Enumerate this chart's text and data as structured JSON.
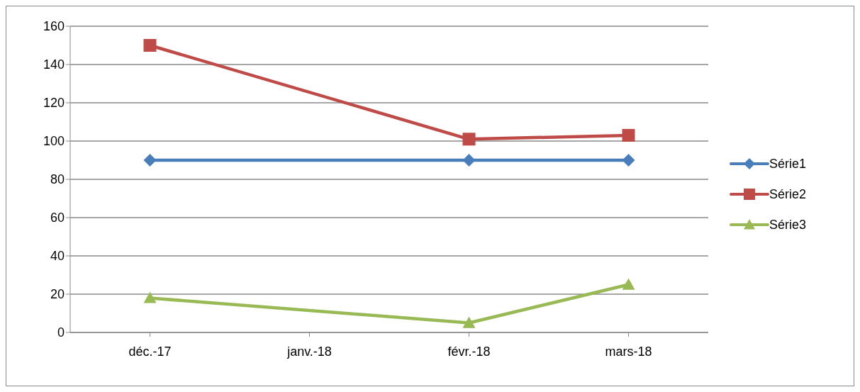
{
  "chart_data": {
    "type": "line",
    "categories": [
      "déc.-17",
      "janv.-18",
      "févr.-18",
      "mars-18"
    ],
    "series": [
      {
        "name": "Série1",
        "color": "#4a7ebb",
        "marker": "diamond",
        "values": [
          90,
          null,
          90,
          90
        ]
      },
      {
        "name": "Série2",
        "color": "#be4b48",
        "marker": "square",
        "values": [
          150,
          null,
          101,
          103
        ]
      },
      {
        "name": "Série3",
        "color": "#98b954",
        "marker": "triangle",
        "values": [
          18,
          null,
          5,
          25
        ]
      }
    ],
    "ylim": [
      0,
      160
    ],
    "yticks": [
      0,
      20,
      40,
      60,
      80,
      100,
      120,
      140,
      160
    ],
    "grid": "y",
    "legend": "right"
  }
}
